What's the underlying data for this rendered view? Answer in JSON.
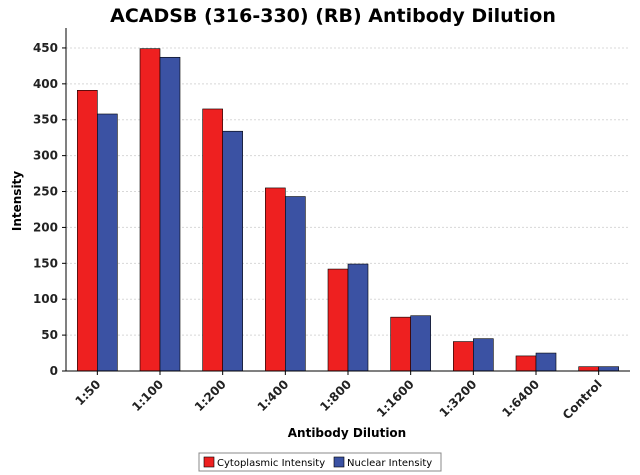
{
  "chart_data": {
    "type": "bar",
    "title": "ACADSB (316-330) (RB) Antibody Dilution",
    "xlabel": "Antibody Dilution",
    "ylabel": "Intensity",
    "categories": [
      "1:50",
      "1:100",
      "1:200",
      "1:400",
      "1:800",
      "1:1600",
      "1:3200",
      "1:6400",
      "Control"
    ],
    "series": [
      {
        "name": "Cytoplasmic Intensity",
        "color": "#ee2020",
        "values": [
          391,
          449,
          365,
          255,
          142,
          75,
          41,
          21,
          6
        ]
      },
      {
        "name": "Nuclear Intensity",
        "color": "#3b52a3",
        "values": [
          358,
          437,
          334,
          243,
          149,
          77,
          45,
          25,
          6
        ]
      }
    ],
    "ylim": [
      0,
      475
    ],
    "yticks": [
      0,
      50,
      100,
      150,
      200,
      250,
      300,
      350,
      400,
      450
    ],
    "grid": true,
    "legend_position": "bottom-center"
  }
}
